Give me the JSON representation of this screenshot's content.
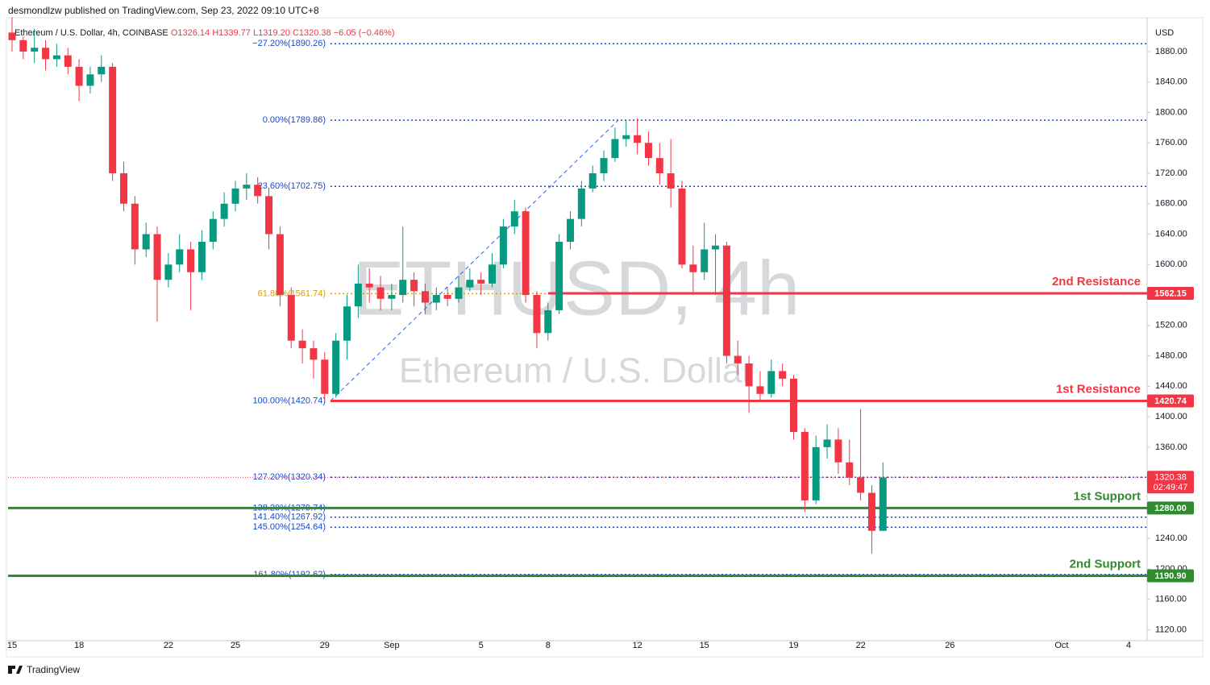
{
  "header": {
    "publisher": "desmondlzw published on TradingView.com, Sep 23, 2022 09:10 UTC+8"
  },
  "legend": {
    "symbol": "Ethereum / U.S. Dollar, 4h, COINBASE",
    "items": [
      "O1326.14",
      "H1339.77",
      "L1319.20",
      "C1320.38",
      "−6.05 (−0.46%)"
    ]
  },
  "watermark": {
    "symbol": "ETHUSD, 4h",
    "name": "Ethereum / U.S. Dollar"
  },
  "footer": {
    "brand": "TradingView"
  },
  "chart_data": {
    "type": "candlestick",
    "up_color": "#089981",
    "down_color": "#f23645",
    "y_axis_label": "USD",
    "x": [
      0,
      0.5,
      1,
      1.5,
      2,
      2.5,
      3,
      3.5,
      4,
      4.5,
      5,
      5.5,
      6,
      6.5,
      7,
      7.5,
      8,
      8.5,
      9,
      9.5,
      10,
      10.5,
      11,
      11.5,
      12,
      12.5,
      13,
      13.5,
      14,
      14.5,
      15,
      15.5,
      16,
      16.5,
      17,
      17.5,
      18,
      18.5,
      19,
      19.5,
      20,
      20.5,
      21,
      21.5,
      22,
      22.5,
      23,
      23.5,
      24,
      24.5,
      25,
      25.5,
      26,
      26.5,
      27,
      27.5,
      28,
      28.5,
      29,
      29.5,
      30,
      30.5,
      31,
      31.5,
      32,
      32.5,
      33,
      33.5,
      34,
      34.5,
      35,
      35.5,
      36,
      36.5,
      37,
      37.5,
      38,
      38.5,
      39
    ],
    "open": [
      1905,
      1895,
      1880,
      1885,
      1870,
      1875,
      1860,
      1835,
      1850,
      1860,
      1720,
      1680,
      1620,
      1640,
      1580,
      1600,
      1620,
      1590,
      1630,
      1660,
      1680,
      1700,
      1705,
      1690,
      1640,
      1560,
      1500,
      1490,
      1475,
      1430,
      1500,
      1545,
      1575,
      1570,
      1555,
      1560,
      1580,
      1565,
      1550,
      1560,
      1555,
      1570,
      1580,
      1575,
      1600,
      1650,
      1670,
      1560,
      1510,
      1540,
      1630,
      1660,
      1700,
      1720,
      1740,
      1765,
      1770,
      1760,
      1740,
      1720,
      1700,
      1600,
      1590,
      1620,
      1625,
      1480,
      1470,
      1440,
      1430,
      1460,
      1450,
      1380,
      1290,
      1360,
      1370,
      1340,
      1320,
      1300,
      1250
    ],
    "high": [
      1925,
      1900,
      1910,
      1895,
      1890,
      1885,
      1870,
      1860,
      1875,
      1865,
      1735,
      1690,
      1655,
      1650,
      1615,
      1640,
      1630,
      1645,
      1670,
      1695,
      1710,
      1720,
      1715,
      1700,
      1650,
      1570,
      1515,
      1500,
      1485,
      1510,
      1560,
      1600,
      1595,
      1585,
      1575,
      1650,
      1590,
      1575,
      1570,
      1570,
      1585,
      1595,
      1590,
      1615,
      1660,
      1685,
      1675,
      1565,
      1550,
      1640,
      1670,
      1710,
      1730,
      1750,
      1780,
      1790,
      1792,
      1775,
      1760,
      1765,
      1710,
      1625,
      1655,
      1640,
      1630,
      1500,
      1480,
      1460,
      1475,
      1470,
      1455,
      1385,
      1375,
      1390,
      1385,
      1370,
      1410,
      1310,
      1340
    ],
    "low": [
      1880,
      1870,
      1865,
      1855,
      1860,
      1850,
      1815,
      1825,
      1840,
      1710,
      1670,
      1600,
      1610,
      1525,
      1570,
      1590,
      1540,
      1580,
      1620,
      1650,
      1670,
      1685,
      1680,
      1620,
      1545,
      1490,
      1470,
      1450,
      1420,
      1425,
      1475,
      1530,
      1550,
      1540,
      1540,
      1550,
      1545,
      1535,
      1540,
      1545,
      1550,
      1565,
      1560,
      1570,
      1595,
      1640,
      1550,
      1490,
      1500,
      1535,
      1620,
      1650,
      1695,
      1710,
      1735,
      1755,
      1745,
      1730,
      1705,
      1675,
      1595,
      1560,
      1580,
      1560,
      1470,
      1455,
      1405,
      1420,
      1425,
      1440,
      1370,
      1275,
      1285,
      1345,
      1325,
      1310,
      1290,
      1220,
      1250
    ],
    "close": [
      1895,
      1880,
      1885,
      1870,
      1875,
      1860,
      1835,
      1850,
      1860,
      1720,
      1680,
      1620,
      1640,
      1580,
      1600,
      1620,
      1590,
      1630,
      1660,
      1680,
      1700,
      1705,
      1690,
      1640,
      1560,
      1500,
      1490,
      1475,
      1430,
      1500,
      1545,
      1575,
      1570,
      1555,
      1560,
      1580,
      1565,
      1550,
      1560,
      1555,
      1570,
      1580,
      1575,
      1600,
      1650,
      1670,
      1560,
      1510,
      1540,
      1630,
      1660,
      1700,
      1720,
      1740,
      1765,
      1770,
      1760,
      1740,
      1720,
      1700,
      1600,
      1590,
      1620,
      1625,
      1480,
      1470,
      1440,
      1430,
      1460,
      1450,
      1380,
      1290,
      1360,
      1370,
      1340,
      1320,
      1300,
      1250,
      1320
    ],
    "xlim": [
      -0.18,
      50.83
    ],
    "xticks": [
      {
        "value": 0,
        "label": "15"
      },
      {
        "value": 3,
        "label": "18"
      },
      {
        "value": 7,
        "label": "22"
      },
      {
        "value": 10,
        "label": "25"
      },
      {
        "value": 14,
        "label": "29"
      },
      {
        "value": 17,
        "label": "Sep"
      },
      {
        "value": 21,
        "label": "5"
      },
      {
        "value": 24,
        "label": "8"
      },
      {
        "value": 28,
        "label": "12"
      },
      {
        "value": 31,
        "label": "15"
      },
      {
        "value": 35,
        "label": "19"
      },
      {
        "value": 38,
        "label": "22"
      },
      {
        "value": 42,
        "label": "26"
      },
      {
        "value": 47,
        "label": "Oct"
      },
      {
        "value": 50,
        "label": "4"
      }
    ],
    "ylim": [
      1105.6,
      1921.3
    ],
    "yticks": [
      {
        "value": 1120,
        "label": "1120.00"
      },
      {
        "value": 1160,
        "label": "1160.00"
      },
      {
        "value": 1200,
        "label": "1200.00"
      },
      {
        "value": 1240,
        "label": "1240.00"
      },
      {
        "value": 1280,
        "label": "1280.00"
      },
      {
        "value": 1320,
        "label": "1320.00"
      },
      {
        "value": 1360,
        "label": "1360.00"
      },
      {
        "value": 1400,
        "label": "1400.00"
      },
      {
        "value": 1440,
        "label": "1440.00"
      },
      {
        "value": 1480,
        "label": "1480.00"
      },
      {
        "value": 1520,
        "label": "1520.00"
      },
      {
        "value": 1560,
        "label": "1560.00"
      },
      {
        "value": 1600,
        "label": "1600.00"
      },
      {
        "value": 1640,
        "label": "1640.00"
      },
      {
        "value": 1680,
        "label": "1680.00"
      },
      {
        "value": 1720,
        "label": "1720.00"
      },
      {
        "value": 1760,
        "label": "1760.00"
      },
      {
        "value": 1800,
        "label": "1800.00"
      },
      {
        "value": 1840,
        "label": "1840.00"
      },
      {
        "value": 1880,
        "label": "1880.00"
      }
    ],
    "fib_levels": [
      {
        "label": "−27.20%(1890.26)",
        "value": 1890.26,
        "color": "#1848cc"
      },
      {
        "label": "0.00%(1789.86)",
        "value": 1789.86,
        "color": "#1848cc"
      },
      {
        "label": "23.60%(1702.75)",
        "value": 1702.75,
        "color": "#1848cc"
      },
      {
        "label": "61.80%(1561.74)",
        "value": 1561.74,
        "color": "#d4a00a"
      },
      {
        "label": "100.00%(1420.74)",
        "value": 1420.74,
        "color": "#1848cc"
      },
      {
        "label": "127.20%(1320.34)",
        "value": 1320.34,
        "color": "#1848cc"
      },
      {
        "label": "138.20%(1279.74)",
        "value": 1279.74,
        "color": "#1848cc"
      },
      {
        "label": "141.40%(1267.92)",
        "value": 1267.92,
        "color": "#1848cc"
      },
      {
        "label": "145.00%(1254.64)",
        "value": 1254.64,
        "color": "#1848cc"
      },
      {
        "label": "161.80%(1192.62)",
        "value": 1192.62,
        "color": "#1848cc"
      }
    ],
    "key_levels": [
      {
        "name": "2nd Resistance",
        "value": 1562.15,
        "label": "1562.15",
        "color": "#f23645"
      },
      {
        "name": "1st Resistance",
        "value": 1420.74,
        "label": "1420.74",
        "color": "#f23645"
      },
      {
        "name": "1st Support",
        "value": 1280.0,
        "label": "1280.00",
        "color": "#2e8b2e"
      },
      {
        "name": "2nd Support",
        "value": 1190.9,
        "label": "1190.90",
        "color": "#2e8b2e"
      }
    ],
    "last_price": {
      "value": 1320.38,
      "label": "1320.38",
      "countdown": "02:49:47",
      "color": "#f23645"
    }
  }
}
